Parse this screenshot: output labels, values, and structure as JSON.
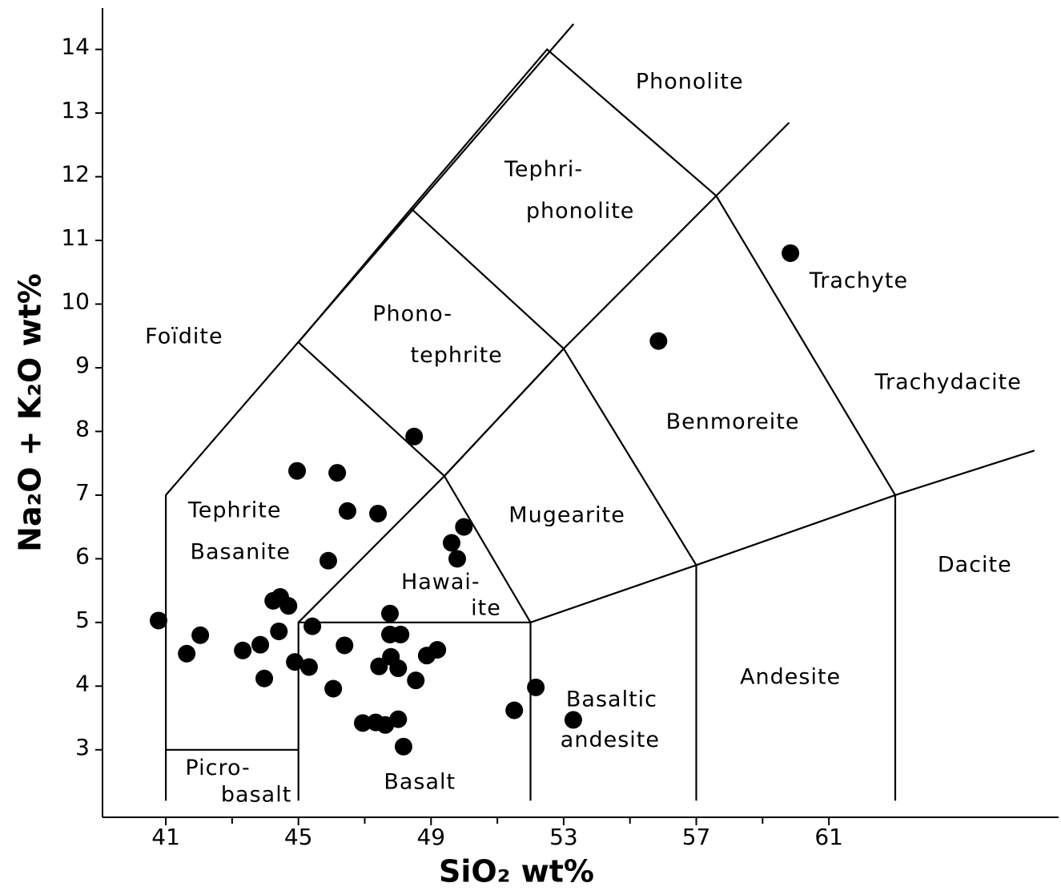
{
  "chart_data": {
    "type": "scatter",
    "x_label": "SiO₂ wt%",
    "y_label": "Na₂O + K₂O wt%",
    "xlim": [
      39.09,
      67.88
    ],
    "ylim": [
      1.94,
      14.65
    ],
    "xticks": [
      41,
      45,
      49,
      53,
      57,
      61
    ],
    "xminor_ticks": [
      43,
      47,
      51,
      55,
      59
    ],
    "yticks": [
      3,
      4,
      5,
      6,
      7,
      8,
      9,
      10,
      11,
      12,
      13,
      14
    ],
    "color": "#000000",
    "series": [
      {
        "x": [
          40.78,
          41.63,
          42.04,
          43.32,
          43.85,
          43.97,
          44.24,
          44.45,
          44.7,
          44.41,
          44.96,
          44.89,
          45.32,
          45.42,
          45.9,
          46.17,
          46.48,
          46.39,
          46.05,
          47.4,
          48.49,
          47.76,
          47.76,
          48.08,
          47.43,
          47.79,
          48.01,
          48.54,
          48.87,
          49.19,
          46.94,
          47.33,
          47.62,
          48.01,
          48.17,
          49.62,
          49.79,
          49.99,
          51.51,
          52.16,
          53.29,
          55.86,
          59.84
        ],
        "values": [
          5.03,
          4.51,
          4.8,
          4.56,
          4.65,
          4.12,
          5.34,
          5.4,
          5.26,
          4.86,
          7.38,
          4.38,
          4.3,
          4.94,
          5.97,
          7.35,
          6.75,
          4.64,
          3.96,
          6.71,
          7.92,
          5.14,
          4.81,
          4.81,
          4.31,
          4.46,
          4.28,
          4.09,
          4.48,
          4.57,
          3.42,
          3.43,
          3.39,
          3.48,
          3.05,
          6.25,
          6.0,
          6.5,
          3.62,
          3.98,
          3.47,
          9.42,
          10.8
        ]
      }
    ],
    "boundaries": [
      [
        [
          41,
          2.2
        ],
        [
          41,
          7
        ],
        [
          53.3,
          14.4
        ]
      ],
      [
        [
          41,
          3
        ],
        [
          45,
          3
        ]
      ],
      [
        [
          45,
          2.2
        ],
        [
          45,
          5
        ],
        [
          52,
          5
        ],
        [
          52,
          2.2
        ]
      ],
      [
        [
          52,
          5
        ],
        [
          57,
          5.9
        ],
        [
          63,
          7
        ],
        [
          67.2,
          7.7
        ]
      ],
      [
        [
          57,
          2.2
        ],
        [
          57,
          5.9
        ]
      ],
      [
        [
          63,
          2.2
        ],
        [
          63,
          7
        ]
      ],
      [
        [
          45,
          5
        ],
        [
          49.4,
          7.3
        ],
        [
          52,
          5
        ]
      ],
      [
        [
          45,
          9.4
        ],
        [
          49.4,
          7.3
        ],
        [
          53,
          9.3
        ],
        [
          57,
          5.9
        ]
      ],
      [
        [
          49.4,
          7.3
        ],
        [
          53,
          9.3
        ],
        [
          57.6,
          11.7
        ],
        [
          59.8,
          12.85
        ]
      ],
      [
        [
          45,
          9.4
        ],
        [
          48.4,
          11.5
        ],
        [
          53,
          9.3
        ]
      ],
      [
        [
          48.4,
          11.5
        ],
        [
          52.5,
          14
        ],
        [
          57.6,
          11.7
        ],
        [
          63,
          7
        ]
      ]
    ],
    "annotations": [
      {
        "text": "Phonolite",
        "x": 56.8,
        "y": 13.48
      },
      {
        "text": "Tephri-",
        "x": 52.4,
        "y": 12.1
      },
      {
        "text": "phonolite",
        "x": 53.5,
        "y": 11.45
      },
      {
        "text": "Trachyte",
        "x": 61.9,
        "y": 10.35
      },
      {
        "text": "Foïdite",
        "x": 41.55,
        "y": 9.48
      },
      {
        "text": "Phono-",
        "x": 48.44,
        "y": 9.83
      },
      {
        "text": "tephrite",
        "x": 49.77,
        "y": 9.18
      },
      {
        "text": "Trachydacite",
        "x": 64.6,
        "y": 8.76
      },
      {
        "text": "Benmoreite",
        "x": 58.1,
        "y": 8.14
      },
      {
        "text": "Mugearite",
        "x": 53.1,
        "y": 6.67
      },
      {
        "text": "Tephrite",
        "x": 43.08,
        "y": 6.75
      },
      {
        "text": "Basanite",
        "x": 43.25,
        "y": 6.09
      },
      {
        "text": "Hawai-",
        "x": 49.29,
        "y": 5.62
      },
      {
        "text": "ite",
        "x": 50.66,
        "y": 5.21
      },
      {
        "text": "Dacite",
        "x": 65.4,
        "y": 5.89
      },
      {
        "text": "Andesite",
        "x": 59.84,
        "y": 4.13
      },
      {
        "text": "Basaltic",
        "x": 54.45,
        "y": 3.78
      },
      {
        "text": "andesite",
        "x": 54.4,
        "y": 3.14
      },
      {
        "text": "Picro-",
        "x": 42.57,
        "y": 2.7
      },
      {
        "text": "basalt",
        "x": 43.73,
        "y": 2.28
      },
      {
        "text": "Basalt",
        "x": 48.66,
        "y": 2.48
      }
    ]
  }
}
